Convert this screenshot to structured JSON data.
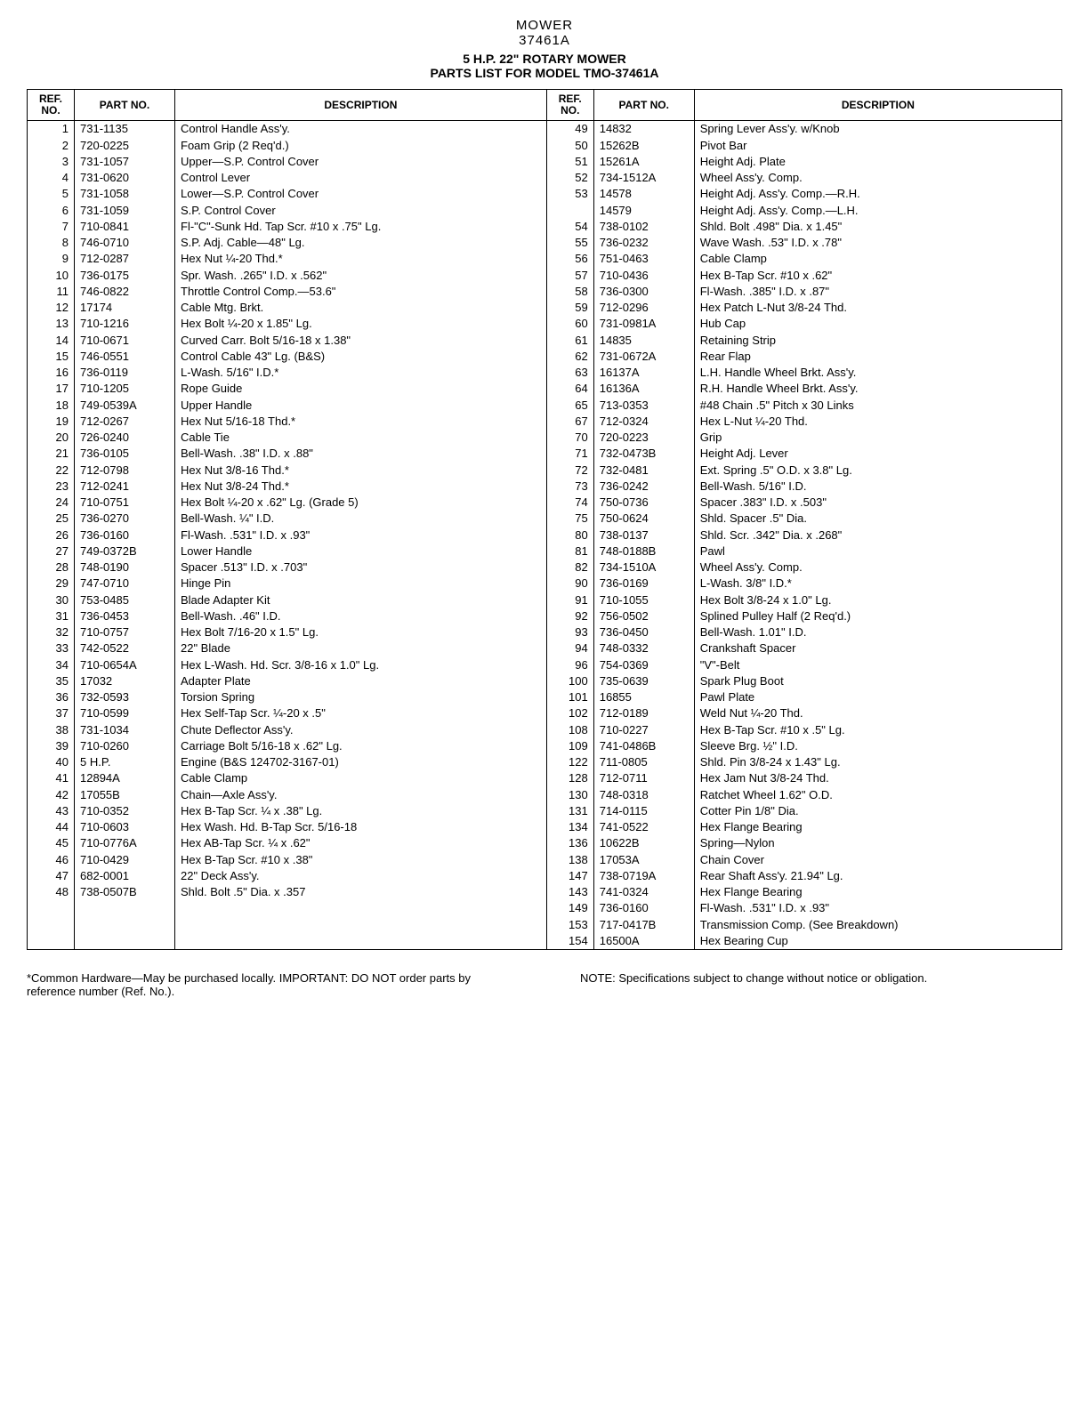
{
  "header": {
    "line1": "MOWER",
    "line2": "37461A",
    "line3": "5 H.P. 22\" ROTARY MOWER",
    "line4": "PARTS LIST FOR MODEL TMO-37461A"
  },
  "columns": {
    "ref": "REF.\nNO.",
    "part": "PART\nNO.",
    "desc": "DESCRIPTION"
  },
  "left": [
    {
      "ref": "1",
      "part": "731-1135",
      "desc": "Control Handle Ass'y."
    },
    {
      "ref": "2",
      "part": "720-0225",
      "desc": "Foam Grip (2 Req'd.)"
    },
    {
      "ref": "3",
      "part": "731-1057",
      "desc": "Upper—S.P. Control Cover"
    },
    {
      "ref": "4",
      "part": "731-0620",
      "desc": "Control Lever"
    },
    {
      "ref": "5",
      "part": "731-1058",
      "desc": "Lower—S.P. Control Cover"
    },
    {
      "ref": "6",
      "part": "731-1059",
      "desc": "S.P. Control Cover"
    },
    {
      "ref": "7",
      "part": "710-0841",
      "desc": "Fl-\"C\"-Sunk Hd. Tap Scr. #10 x .75\" Lg."
    },
    {
      "ref": "8",
      "part": "746-0710",
      "desc": "S.P. Adj. Cable—48\" Lg."
    },
    {
      "ref": "9",
      "part": "712-0287",
      "desc": "Hex Nut ¼-20 Thd.*"
    },
    {
      "ref": "10",
      "part": "736-0175",
      "desc": "Spr. Wash. .265\" I.D. x .562\""
    },
    {
      "ref": "11",
      "part": "746-0822",
      "desc": "Throttle Control Comp.—53.6\""
    },
    {
      "ref": "12",
      "part": "17174",
      "desc": "Cable Mtg. Brkt."
    },
    {
      "ref": "13",
      "part": "710-1216",
      "desc": "Hex Bolt ¼-20 x 1.85\" Lg."
    },
    {
      "ref": "14",
      "part": "710-0671",
      "desc": "Curved Carr. Bolt 5/16-18 x 1.38\""
    },
    {
      "ref": "15",
      "part": "746-0551",
      "desc": "Control Cable 43\" Lg. (B&S)"
    },
    {
      "ref": "16",
      "part": "736-0119",
      "desc": "L-Wash. 5/16\" I.D.*"
    },
    {
      "ref": "17",
      "part": "710-1205",
      "desc": "Rope Guide"
    },
    {
      "ref": "18",
      "part": "749-0539A",
      "desc": "Upper Handle"
    },
    {
      "ref": "19",
      "part": "712-0267",
      "desc": "Hex Nut 5/16-18 Thd.*"
    },
    {
      "ref": "20",
      "part": "726-0240",
      "desc": "Cable Tie"
    },
    {
      "ref": "21",
      "part": "736-0105",
      "desc": "Bell-Wash. .38\" I.D. x .88\""
    },
    {
      "ref": "22",
      "part": "712-0798",
      "desc": "Hex Nut 3/8-16 Thd.*"
    },
    {
      "ref": "23",
      "part": "712-0241",
      "desc": "Hex Nut 3/8-24 Thd.*"
    },
    {
      "ref": "24",
      "part": "710-0751",
      "desc": "Hex Bolt ¼-20 x .62\" Lg. (Grade 5)"
    },
    {
      "ref": "25",
      "part": "736-0270",
      "desc": "Bell-Wash. ¼\" I.D."
    },
    {
      "ref": "26",
      "part": "736-0160",
      "desc": "Fl-Wash. .531\" I.D. x .93\""
    },
    {
      "ref": "27",
      "part": "749-0372B",
      "desc": "Lower Handle"
    },
    {
      "ref": "28",
      "part": "748-0190",
      "desc": "Spacer .513\" I.D. x .703\""
    },
    {
      "ref": "29",
      "part": "747-0710",
      "desc": "Hinge Pin"
    },
    {
      "ref": "30",
      "part": "753-0485",
      "desc": "Blade Adapter Kit"
    },
    {
      "ref": "31",
      "part": "736-0453",
      "desc": "Bell-Wash. .46\" I.D."
    },
    {
      "ref": "32",
      "part": "710-0757",
      "desc": "Hex Bolt 7/16-20 x 1.5\" Lg."
    },
    {
      "ref": "33",
      "part": "742-0522",
      "desc": "22\" Blade"
    },
    {
      "ref": "34",
      "part": "710-0654A",
      "desc": "Hex L-Wash. Hd. Scr. 3/8-16 x 1.0\" Lg."
    },
    {
      "ref": "35",
      "part": "17032",
      "desc": "Adapter Plate"
    },
    {
      "ref": "36",
      "part": "732-0593",
      "desc": "Torsion Spring"
    },
    {
      "ref": "37",
      "part": "710-0599",
      "desc": "Hex Self-Tap Scr. ¼-20 x .5\""
    },
    {
      "ref": "38",
      "part": "731-1034",
      "desc": "Chute Deflector Ass'y."
    },
    {
      "ref": "39",
      "part": "710-0260",
      "desc": "Carriage Bolt 5/16-18 x .62\" Lg."
    },
    {
      "ref": "40",
      "part": "5 H.P.",
      "desc": "Engine (B&S 124702-3167-01)"
    },
    {
      "ref": "41",
      "part": "12894A",
      "desc": "Cable Clamp"
    },
    {
      "ref": "42",
      "part": "17055B",
      "desc": "Chain—Axle Ass'y."
    },
    {
      "ref": "43",
      "part": "710-0352",
      "desc": "Hex B-Tap Scr. ¼ x .38\" Lg."
    },
    {
      "ref": "44",
      "part": "710-0603",
      "desc": "Hex Wash. Hd. B-Tap Scr. 5/16-18"
    },
    {
      "ref": "45",
      "part": "710-0776A",
      "desc": "Hex AB-Tap Scr. ¼ x .62\""
    },
    {
      "ref": "46",
      "part": "710-0429",
      "desc": "Hex B-Tap Scr. #10 x .38\""
    },
    {
      "ref": "47",
      "part": "682-0001",
      "desc": "22\" Deck Ass'y."
    },
    {
      "ref": "48",
      "part": "738-0507B",
      "desc": "Shld. Bolt .5\" Dia. x .357"
    }
  ],
  "right": [
    {
      "ref": "49",
      "part": "14832",
      "desc": "Spring Lever Ass'y. w/Knob"
    },
    {
      "ref": "50",
      "part": "15262B",
      "desc": "Pivot Bar"
    },
    {
      "ref": "51",
      "part": "15261A",
      "desc": "Height Adj. Plate"
    },
    {
      "ref": "52",
      "part": "734-1512A",
      "desc": "Wheel Ass'y. Comp."
    },
    {
      "ref": "53",
      "part": "14578",
      "desc": "Height Adj. Ass'y. Comp.—R.H."
    },
    {
      "ref": "",
      "part": "14579",
      "desc": "Height Adj. Ass'y. Comp.—L.H."
    },
    {
      "ref": "54",
      "part": "738-0102",
      "desc": "Shld. Bolt .498\" Dia. x 1.45\""
    },
    {
      "ref": "55",
      "part": "736-0232",
      "desc": "Wave Wash. .53\" I.D. x .78\""
    },
    {
      "ref": "56",
      "part": "751-0463",
      "desc": "Cable Clamp"
    },
    {
      "ref": "57",
      "part": "710-0436",
      "desc": "Hex B-Tap Scr. #10 x .62\""
    },
    {
      "ref": "58",
      "part": "736-0300",
      "desc": "Fl-Wash. .385\" I.D. x .87\""
    },
    {
      "ref": "59",
      "part": "712-0296",
      "desc": "Hex Patch L-Nut 3/8-24 Thd."
    },
    {
      "ref": "60",
      "part": "731-0981A",
      "desc": "Hub Cap"
    },
    {
      "ref": "61",
      "part": "14835",
      "desc": "Retaining Strip"
    },
    {
      "ref": "62",
      "part": "731-0672A",
      "desc": "Rear Flap"
    },
    {
      "ref": "63",
      "part": "16137A",
      "desc": "L.H. Handle Wheel Brkt. Ass'y."
    },
    {
      "ref": "64",
      "part": "16136A",
      "desc": "R.H. Handle Wheel Brkt. Ass'y."
    },
    {
      "ref": "65",
      "part": "713-0353",
      "desc": "#48 Chain .5\" Pitch x 30 Links"
    },
    {
      "ref": "67",
      "part": "712-0324",
      "desc": "Hex L-Nut ¼-20 Thd."
    },
    {
      "ref": "70",
      "part": "720-0223",
      "desc": "Grip"
    },
    {
      "ref": "71",
      "part": "732-0473B",
      "desc": "Height Adj. Lever"
    },
    {
      "ref": "72",
      "part": "732-0481",
      "desc": "Ext. Spring .5\" O.D. x 3.8\" Lg."
    },
    {
      "ref": "73",
      "part": "736-0242",
      "desc": "Bell-Wash. 5/16\" I.D."
    },
    {
      "ref": "74",
      "part": "750-0736",
      "desc": "Spacer .383\" I.D. x .503\""
    },
    {
      "ref": "75",
      "part": "750-0624",
      "desc": "Shld. Spacer .5\" Dia."
    },
    {
      "ref": "80",
      "part": "738-0137",
      "desc": "Shld. Scr. .342\" Dia. x .268\""
    },
    {
      "ref": "81",
      "part": "748-0188B",
      "desc": "Pawl"
    },
    {
      "ref": "82",
      "part": "734-1510A",
      "desc": "Wheel Ass'y. Comp."
    },
    {
      "ref": "90",
      "part": "736-0169",
      "desc": "L-Wash. 3/8\" I.D.*"
    },
    {
      "ref": "91",
      "part": "710-1055",
      "desc": "Hex Bolt 3/8-24 x 1.0\" Lg."
    },
    {
      "ref": "92",
      "part": "756-0502",
      "desc": "Splined Pulley Half (2 Req'd.)"
    },
    {
      "ref": "93",
      "part": "736-0450",
      "desc": "Bell-Wash. 1.01\" I.D."
    },
    {
      "ref": "94",
      "part": "748-0332",
      "desc": "Crankshaft Spacer"
    },
    {
      "ref": "96",
      "part": "754-0369",
      "desc": "\"V\"-Belt"
    },
    {
      "ref": "100",
      "part": "735-0639",
      "desc": "Spark Plug Boot"
    },
    {
      "ref": "101",
      "part": "16855",
      "desc": "Pawl Plate"
    },
    {
      "ref": "102",
      "part": "712-0189",
      "desc": "Weld Nut ¼-20 Thd."
    },
    {
      "ref": "108",
      "part": "710-0227",
      "desc": "Hex B-Tap Scr. #10 x .5\" Lg."
    },
    {
      "ref": "109",
      "part": "741-0486B",
      "desc": "Sleeve Brg. ½\" I.D."
    },
    {
      "ref": "122",
      "part": "711-0805",
      "desc": "Shld. Pin 3/8-24 x 1.43\" Lg."
    },
    {
      "ref": "128",
      "part": "712-0711",
      "desc": "Hex Jam Nut 3/8-24 Thd."
    },
    {
      "ref": "130",
      "part": "748-0318",
      "desc": "Ratchet Wheel 1.62\" O.D."
    },
    {
      "ref": "131",
      "part": "714-0115",
      "desc": "Cotter Pin 1/8\" Dia."
    },
    {
      "ref": "134",
      "part": "741-0522",
      "desc": "Hex Flange Bearing"
    },
    {
      "ref": "136",
      "part": "10622B",
      "desc": "Spring—Nylon"
    },
    {
      "ref": "138",
      "part": "17053A",
      "desc": "Chain Cover"
    },
    {
      "ref": "147",
      "part": "738-0719A",
      "desc": "Rear Shaft Ass'y. 21.94\" Lg."
    },
    {
      "ref": "143",
      "part": "741-0324",
      "desc": "Hex Flange Bearing"
    },
    {
      "ref": "149",
      "part": "736-0160",
      "desc": "Fl-Wash. .531\" I.D. x .93\""
    },
    {
      "ref": "153",
      "part": "717-0417B",
      "desc": "Transmission Comp. (See Breakdown)"
    },
    {
      "ref": "154",
      "part": "16500A",
      "desc": "Hex Bearing Cup"
    }
  ],
  "footer": {
    "left": "*Common Hardware—May be purchased locally.\nIMPORTANT: DO NOT order parts by reference number (Ref. No.).",
    "right": "NOTE: Specifications subject to change without notice or obligation."
  }
}
